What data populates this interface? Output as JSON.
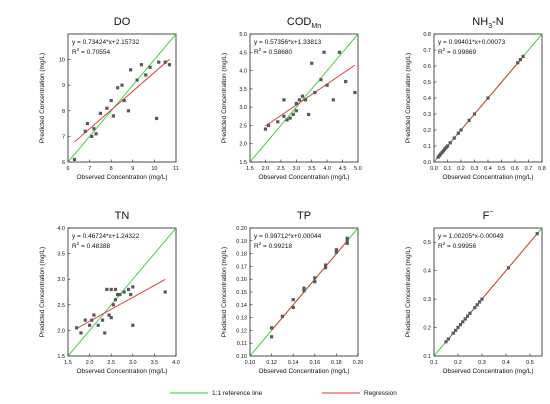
{
  "legend": {
    "reference_label": "1:1 reference line",
    "regression_label": "Regression"
  },
  "colors": {
    "reference": "#33cc33",
    "regression": "#e0302b",
    "points": "#595959",
    "axes": "#222222"
  },
  "chart_data": [
    {
      "type": "scatter",
      "title_main": "DO",
      "title_sub": "",
      "title_sup": "",
      "xlabel": "Observed Concentration (mg/L)",
      "ylabel": "Predicted Concentration (mg/L)",
      "equation": "y = 0.73424*x+2.15732",
      "r2_prefix": "R",
      "r2_power": "2",
      "r2_value": " = 0.70554",
      "xlim": [
        6,
        11
      ],
      "ylim": [
        6,
        11
      ],
      "xticks": [
        6,
        7,
        8,
        9,
        10,
        11
      ],
      "yticks": [
        6,
        7,
        8,
        9,
        10
      ],
      "regression": {
        "slope": 0.73424,
        "intercept": 2.15732
      },
      "points": [
        [
          6.3,
          6.1
        ],
        [
          6.8,
          7.2
        ],
        [
          6.9,
          7.5
        ],
        [
          7.1,
          7.0
        ],
        [
          7.2,
          7.3
        ],
        [
          7.3,
          7.1
        ],
        [
          7.5,
          7.9
        ],
        [
          7.8,
          8.1
        ],
        [
          8.0,
          8.4
        ],
        [
          8.1,
          7.8
        ],
        [
          8.3,
          8.9
        ],
        [
          8.5,
          9.0
        ],
        [
          8.6,
          8.4
        ],
        [
          8.8,
          8.0
        ],
        [
          8.9,
          9.6
        ],
        [
          9.2,
          9.2
        ],
        [
          9.4,
          9.8
        ],
        [
          9.6,
          9.4
        ],
        [
          9.8,
          9.7
        ],
        [
          10.1,
          7.7
        ],
        [
          10.2,
          9.9
        ],
        [
          10.5,
          9.9
        ],
        [
          10.7,
          9.8
        ]
      ]
    },
    {
      "type": "scatter",
      "title_main": "COD",
      "title_sub": "Mn",
      "title_sup": "",
      "xlabel": "Observed Concentration (mg/L)",
      "ylabel": "Predicted Concentration (mg/L)",
      "equation": "y = 0.57356*x+1.33813",
      "r2_prefix": "R",
      "r2_power": "2",
      "r2_value": " = 0.58680",
      "xlim": [
        1.5,
        5.0
      ],
      "ylim": [
        1.5,
        5.0
      ],
      "xticks": [
        1.5,
        2.0,
        2.5,
        3.0,
        3.5,
        4.0,
        4.5,
        5.0
      ],
      "yticks": [
        1.5,
        2.0,
        2.5,
        3.0,
        3.5,
        4.0,
        4.5,
        5.0
      ],
      "regression": {
        "slope": 0.57356,
        "intercept": 1.33813
      },
      "points": [
        [
          2.0,
          2.4
        ],
        [
          2.1,
          2.5
        ],
        [
          2.4,
          2.6
        ],
        [
          2.6,
          3.2
        ],
        [
          2.6,
          2.75
        ],
        [
          2.7,
          2.65
        ],
        [
          2.8,
          2.7
        ],
        [
          2.9,
          2.8
        ],
        [
          3.0,
          2.9
        ],
        [
          3.0,
          3.1
        ],
        [
          3.1,
          3.2
        ],
        [
          3.2,
          3.3
        ],
        [
          3.3,
          3.2
        ],
        [
          3.4,
          2.8
        ],
        [
          3.5,
          4.2
        ],
        [
          3.6,
          3.4
        ],
        [
          3.8,
          3.75
        ],
        [
          3.9,
          4.5
        ],
        [
          4.0,
          3.6
        ],
        [
          4.2,
          3.2
        ],
        [
          4.4,
          4.5
        ],
        [
          4.6,
          3.7
        ],
        [
          4.9,
          3.4
        ]
      ]
    },
    {
      "type": "scatter",
      "title_main": "NH",
      "title_sub": "3",
      "title_sup": "",
      "title_suffix": "-N",
      "xlabel": "Observed Concentration (mg/L)",
      "ylabel": "Predicted Concentration (mg/L)",
      "equation": "y = 0.99401*x+0.00073",
      "r2_prefix": "R",
      "r2_power": "2",
      "r2_value": " = 0.99869",
      "xlim": [
        0,
        0.8
      ],
      "ylim": [
        0,
        0.8
      ],
      "xticks": [
        0.0,
        0.1,
        0.2,
        0.3,
        0.4,
        0.5,
        0.6,
        0.7,
        0.8
      ],
      "yticks": [
        0.0,
        0.1,
        0.2,
        0.3,
        0.4,
        0.5,
        0.6,
        0.7,
        0.8
      ],
      "regression": {
        "slope": 0.99401,
        "intercept": 0.00073
      },
      "points": [
        [
          0.03,
          0.03
        ],
        [
          0.04,
          0.04
        ],
        [
          0.05,
          0.05
        ],
        [
          0.06,
          0.06
        ],
        [
          0.07,
          0.07
        ],
        [
          0.08,
          0.08
        ],
        [
          0.09,
          0.09
        ],
        [
          0.1,
          0.1
        ],
        [
          0.12,
          0.12
        ],
        [
          0.15,
          0.15
        ],
        [
          0.18,
          0.18
        ],
        [
          0.2,
          0.2
        ],
        [
          0.26,
          0.26
        ],
        [
          0.3,
          0.3
        ],
        [
          0.4,
          0.4
        ],
        [
          0.62,
          0.62
        ],
        [
          0.64,
          0.64
        ],
        [
          0.66,
          0.66
        ]
      ]
    },
    {
      "type": "scatter",
      "title_main": "TN",
      "title_sub": "",
      "title_sup": "",
      "xlabel": "Observed Concentration (mg/L)",
      "ylabel": "Predicted Concentration (mg/L)",
      "equation": "y = 0.46724*x+1.24322",
      "r2_prefix": "R",
      "r2_power": "2",
      "r2_value": " = 0.48388",
      "xlim": [
        1.5,
        4.0
      ],
      "ylim": [
        1.5,
        4.0
      ],
      "xticks": [
        1.5,
        2.0,
        2.5,
        3.0,
        3.5,
        4.0
      ],
      "yticks": [
        1.5,
        2.0,
        2.5,
        3.0,
        3.5,
        4.0
      ],
      "regression": {
        "slope": 0.46724,
        "intercept": 1.24322
      },
      "points": [
        [
          1.7,
          2.05
        ],
        [
          1.8,
          1.95
        ],
        [
          1.9,
          2.2
        ],
        [
          2.0,
          2.1
        ],
        [
          2.05,
          2.2
        ],
        [
          2.1,
          2.3
        ],
        [
          2.2,
          2.1
        ],
        [
          2.3,
          2.2
        ],
        [
          2.35,
          1.95
        ],
        [
          2.4,
          2.8
        ],
        [
          2.45,
          2.3
        ],
        [
          2.5,
          2.25
        ],
        [
          2.5,
          2.8
        ],
        [
          2.55,
          2.5
        ],
        [
          2.6,
          2.6
        ],
        [
          2.6,
          2.8
        ],
        [
          2.65,
          2.7
        ],
        [
          2.7,
          2.7
        ],
        [
          2.8,
          2.75
        ],
        [
          2.9,
          2.8
        ],
        [
          2.95,
          2.7
        ],
        [
          3.0,
          2.1
        ],
        [
          3.0,
          2.85
        ],
        [
          3.75,
          2.75
        ]
      ]
    },
    {
      "type": "scatter",
      "title_main": "TP",
      "title_sub": "",
      "title_sup": "",
      "xlabel": "Observed Concentration (mg/L)",
      "ylabel": "Predicted Concentration (mg/L)",
      "equation": "y = 0.99712*x+0.00044",
      "r2_prefix": "R",
      "r2_power": "2",
      "r2_value": " = 0.99218",
      "xlim": [
        0.1,
        0.2
      ],
      "ylim": [
        0.1,
        0.2
      ],
      "xticks": [
        0.1,
        0.12,
        0.14,
        0.16,
        0.18,
        0.2
      ],
      "yticks": [
        0.1,
        0.11,
        0.12,
        0.13,
        0.14,
        0.15,
        0.16,
        0.17,
        0.18,
        0.19,
        0.2
      ],
      "regression": {
        "slope": 0.99712,
        "intercept": 0.00044
      },
      "points": [
        [
          0.12,
          0.115
        ],
        [
          0.12,
          0.122
        ],
        [
          0.13,
          0.131
        ],
        [
          0.14,
          0.138
        ],
        [
          0.14,
          0.144
        ],
        [
          0.15,
          0.151
        ],
        [
          0.15,
          0.153
        ],
        [
          0.16,
          0.158
        ],
        [
          0.16,
          0.161
        ],
        [
          0.17,
          0.171
        ],
        [
          0.17,
          0.169
        ],
        [
          0.18,
          0.181
        ],
        [
          0.18,
          0.183
        ],
        [
          0.19,
          0.19
        ],
        [
          0.19,
          0.192
        ],
        [
          0.19,
          0.188
        ]
      ]
    },
    {
      "type": "scatter",
      "title_main": "F",
      "title_sub": "",
      "title_sup": "−",
      "xlabel": "Observed Concentration (mg/L)",
      "ylabel": "Predicted Concentration (mg/L)",
      "equation": "y = 1.00205*x-0.00049",
      "r2_prefix": "R",
      "r2_power": "2",
      "r2_value": " = 0.99956",
      "xlim": [
        0.1,
        0.55
      ],
      "ylim": [
        0.1,
        0.55
      ],
      "xticks": [
        0.1,
        0.2,
        0.3,
        0.4,
        0.5
      ],
      "yticks": [
        0.1,
        0.2,
        0.3,
        0.4,
        0.5
      ],
      "regression": {
        "slope": 1.00205,
        "intercept": -0.00049
      },
      "points": [
        [
          0.15,
          0.15
        ],
        [
          0.16,
          0.16
        ],
        [
          0.18,
          0.18
        ],
        [
          0.19,
          0.19
        ],
        [
          0.2,
          0.2
        ],
        [
          0.21,
          0.21
        ],
        [
          0.22,
          0.22
        ],
        [
          0.23,
          0.23
        ],
        [
          0.24,
          0.24
        ],
        [
          0.25,
          0.25
        ],
        [
          0.27,
          0.27
        ],
        [
          0.28,
          0.28
        ],
        [
          0.29,
          0.29
        ],
        [
          0.3,
          0.3
        ],
        [
          0.41,
          0.41
        ],
        [
          0.53,
          0.53
        ]
      ]
    }
  ]
}
